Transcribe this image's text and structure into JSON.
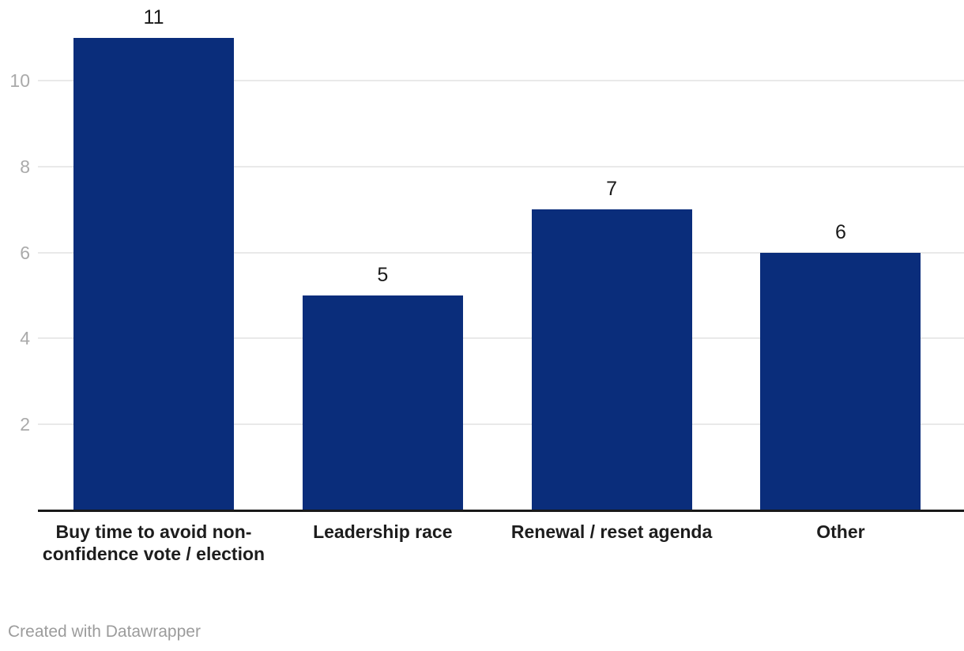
{
  "chart_data": {
    "type": "bar",
    "categories": [
      "Buy time to avoid non-confidence vote / election",
      "Leadership race",
      "Renewal / reset agenda",
      "Other"
    ],
    "values": [
      11,
      5,
      7,
      6
    ],
    "yticks": [
      2,
      4,
      6,
      8,
      10
    ],
    "ylim": [
      0,
      11.2
    ],
    "grid": true,
    "legend_position": "none",
    "title": "",
    "xlabel": "",
    "ylabel": ""
  },
  "colors": {
    "bar": "#0a2d7b",
    "gridline": "#e9e9e9",
    "axis_line": "#191919",
    "tick_label": "#aaaaaa",
    "value_label": "#1a1a1a",
    "category_label": "#1d1d1d",
    "credit": "#9c9c9c",
    "background": "#ffffff"
  },
  "footer": {
    "credit": "Created with Datawrapper"
  }
}
